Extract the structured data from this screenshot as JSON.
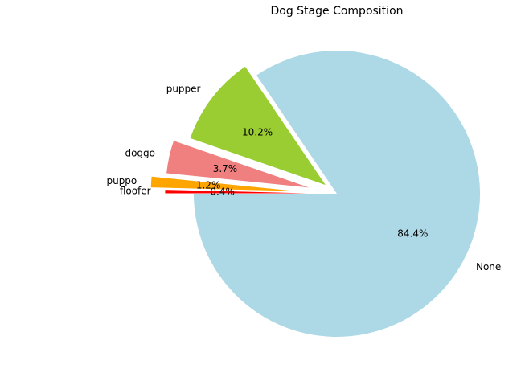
{
  "chart_data": {
    "type": "pie",
    "title": "Dog Stage Composition",
    "slices": [
      {
        "label": "None",
        "value": 84.4,
        "pct_label": "84.4%",
        "color": "#ADD8E6",
        "exploded": false
      },
      {
        "label": "pupper",
        "value": 10.2,
        "pct_label": "10.2%",
        "color": "#9ACD32",
        "exploded": true
      },
      {
        "label": "doggo",
        "value": 3.7,
        "pct_label": "3.7%",
        "color": "#F08080",
        "exploded": true
      },
      {
        "label": "puppo",
        "value": 1.2,
        "pct_label": "1.2%",
        "color": "#FFA500",
        "exploded": true
      },
      {
        "label": "floofer",
        "value": 0.4,
        "pct_label": "0.4%",
        "color": "#FF0000",
        "exploded": true
      }
    ],
    "legend": false
  }
}
